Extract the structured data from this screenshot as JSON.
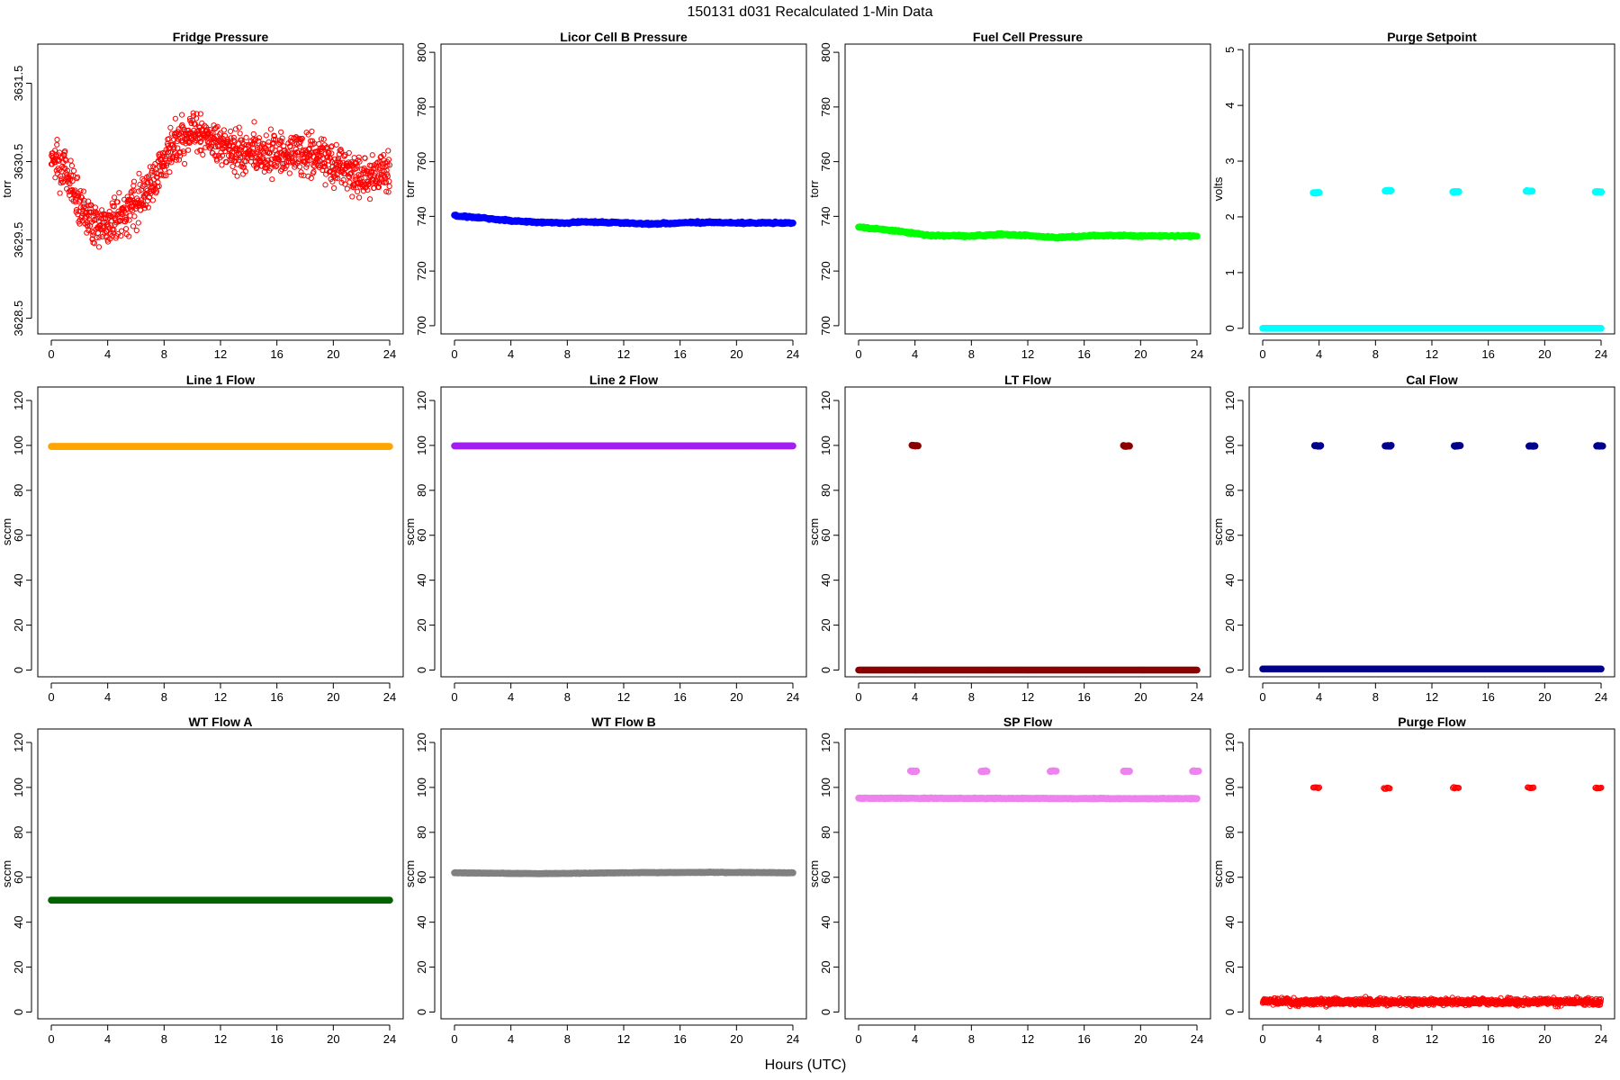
{
  "figure": {
    "title": "150131   d031   Recalculated 1-Min Data",
    "xlabel": "Hours (UTC)"
  },
  "chart_data": [
    {
      "type": "scatter",
      "title": "Fridge Pressure",
      "ylabel": "torr",
      "color": "#ff0000",
      "style": "open",
      "xlim": [
        0,
        24
      ],
      "ylim": [
        3628.3,
        3632.0
      ],
      "xticks": [
        0,
        4,
        8,
        12,
        16,
        20,
        24
      ],
      "yticks": [
        "3628.5",
        "3629.5",
        "3630.5",
        "3631.5"
      ],
      "ytick_vals": [
        3628.5,
        3629.5,
        3630.5,
        3631.5
      ],
      "trend": [
        [
          0,
          3630.6
        ],
        [
          1,
          3630.4
        ],
        [
          2,
          3630.0
        ],
        [
          3,
          3629.7
        ],
        [
          4,
          3629.7
        ],
        [
          5,
          3629.8
        ],
        [
          6,
          3630.0
        ],
        [
          7,
          3630.2
        ],
        [
          8,
          3630.5
        ],
        [
          9,
          3630.8
        ],
        [
          10,
          3630.9
        ],
        [
          11,
          3630.8
        ],
        [
          12,
          3630.7
        ],
        [
          14,
          3630.6
        ],
        [
          16,
          3630.6
        ],
        [
          18,
          3630.6
        ],
        [
          20,
          3630.5
        ],
        [
          22,
          3630.3
        ],
        [
          24,
          3630.4
        ]
      ],
      "spread": 0.45
    },
    {
      "type": "scatter",
      "title": "Licor Cell B Pressure",
      "ylabel": "torr",
      "color": "#0000ff",
      "style": "solid",
      "xlim": [
        0,
        24
      ],
      "ylim": [
        697,
        803
      ],
      "xticks": [
        0,
        4,
        8,
        12,
        16,
        20,
        24
      ],
      "yticks": [
        "700",
        "720",
        "740",
        "760",
        "780",
        "800"
      ],
      "ytick_vals": [
        700,
        720,
        740,
        760,
        780,
        800
      ],
      "trend": [
        [
          0,
          740.2
        ],
        [
          2,
          739.4
        ],
        [
          4,
          738.4
        ],
        [
          6,
          737.8
        ],
        [
          8,
          737.6
        ],
        [
          9,
          738.0
        ],
        [
          12,
          737.6
        ],
        [
          14,
          737.2
        ],
        [
          16,
          737.6
        ],
        [
          18,
          737.8
        ],
        [
          20,
          737.6
        ],
        [
          24,
          737.6
        ]
      ],
      "spread": 0.5
    },
    {
      "type": "scatter",
      "title": "Fuel Cell Pressure",
      "ylabel": "torr",
      "color": "#00ff00",
      "style": "solid",
      "xlim": [
        0,
        24
      ],
      "ylim": [
        697,
        803
      ],
      "xticks": [
        0,
        4,
        8,
        12,
        16,
        20,
        24
      ],
      "yticks": [
        "700",
        "720",
        "740",
        "760",
        "780",
        "800"
      ],
      "ytick_vals": [
        700,
        720,
        740,
        760,
        780,
        800
      ],
      "trend": [
        [
          0,
          736.0
        ],
        [
          2,
          735.0
        ],
        [
          4,
          733.8
        ],
        [
          5,
          733.0
        ],
        [
          8,
          732.8
        ],
        [
          10,
          733.4
        ],
        [
          12,
          733.0
        ],
        [
          14,
          732.2
        ],
        [
          16,
          732.8
        ],
        [
          18,
          733.0
        ],
        [
          20,
          732.8
        ],
        [
          24,
          732.8
        ]
      ],
      "spread": 0.5
    },
    {
      "type": "scatter",
      "title": "Purge Setpoint",
      "ylabel": "volts",
      "color": "#00ffff",
      "style": "solid",
      "xlim": [
        0,
        24
      ],
      "ylim": [
        -0.1,
        5.1
      ],
      "xticks": [
        0,
        4,
        8,
        12,
        16,
        20,
        24
      ],
      "yticks": [
        "0",
        "1",
        "2",
        "3",
        "4",
        "5"
      ],
      "ytick_vals": [
        0,
        1,
        2,
        3,
        4,
        5
      ],
      "trend": [
        [
          0,
          0
        ],
        [
          24,
          0
        ]
      ],
      "spread": 0,
      "clusters": [
        [
          3.8,
          2.43
        ],
        [
          8.9,
          2.47
        ],
        [
          13.7,
          2.45
        ],
        [
          18.9,
          2.46
        ],
        [
          23.8,
          2.45
        ]
      ]
    },
    {
      "type": "scatter",
      "title": "Line 1 Flow",
      "ylabel": "sccm",
      "color": "#ffa500",
      "style": "solid",
      "xlim": [
        0,
        24
      ],
      "ylim": [
        -3,
        126
      ],
      "xticks": [
        0,
        4,
        8,
        12,
        16,
        20,
        24
      ],
      "yticks": [
        "0",
        "20",
        "40",
        "60",
        "80",
        "100",
        "120"
      ],
      "ytick_vals": [
        0,
        20,
        40,
        60,
        80,
        100,
        120
      ],
      "trend": [
        [
          0,
          99.5
        ],
        [
          24,
          99.5
        ]
      ],
      "spread": 0
    },
    {
      "type": "scatter",
      "title": "Line 2 Flow",
      "ylabel": "sccm",
      "color": "#a020f0",
      "style": "solid",
      "xlim": [
        0,
        24
      ],
      "ylim": [
        -3,
        126
      ],
      "xticks": [
        0,
        4,
        8,
        12,
        16,
        20,
        24
      ],
      "yticks": [
        "0",
        "20",
        "40",
        "60",
        "80",
        "100",
        "120"
      ],
      "ytick_vals": [
        0,
        20,
        40,
        60,
        80,
        100,
        120
      ],
      "trend": [
        [
          0,
          99.8
        ],
        [
          24,
          99.8
        ]
      ],
      "spread": 0
    },
    {
      "type": "scatter",
      "title": "LT Flow",
      "ylabel": "sccm",
      "color": "#8b0000",
      "style": "solid",
      "xlim": [
        0,
        24
      ],
      "ylim": [
        -3,
        126
      ],
      "xticks": [
        0,
        4,
        8,
        12,
        16,
        20,
        24
      ],
      "yticks": [
        "0",
        "20",
        "40",
        "60",
        "80",
        "100",
        "120"
      ],
      "ytick_vals": [
        0,
        20,
        40,
        60,
        80,
        100,
        120
      ],
      "trend": [
        [
          0,
          0
        ],
        [
          24,
          0
        ]
      ],
      "spread": 0,
      "clusters": [
        [
          4.0,
          99.8
        ],
        [
          19.0,
          99.8
        ]
      ]
    },
    {
      "type": "scatter",
      "title": "Cal Flow",
      "ylabel": "sccm",
      "color": "#00008b",
      "style": "solid",
      "xlim": [
        0,
        24
      ],
      "ylim": [
        -3,
        126
      ],
      "xticks": [
        0,
        4,
        8,
        12,
        16,
        20,
        24
      ],
      "yticks": [
        "0",
        "20",
        "40",
        "60",
        "80",
        "100",
        "120"
      ],
      "ytick_vals": [
        0,
        20,
        40,
        60,
        80,
        100,
        120
      ],
      "trend": [
        [
          0,
          0.5
        ],
        [
          24,
          0.5
        ]
      ],
      "spread": 0,
      "clusters": [
        [
          3.9,
          99.8
        ],
        [
          8.9,
          99.8
        ],
        [
          13.8,
          99.8
        ],
        [
          19.1,
          99.8
        ],
        [
          23.9,
          99.8
        ]
      ]
    },
    {
      "type": "scatter",
      "title": "WT Flow A",
      "ylabel": "sccm",
      "color": "#006400",
      "style": "solid",
      "xlim": [
        0,
        24
      ],
      "ylim": [
        -3,
        126
      ],
      "xticks": [
        0,
        4,
        8,
        12,
        16,
        20,
        24
      ],
      "yticks": [
        "0",
        "20",
        "40",
        "60",
        "80",
        "100",
        "120"
      ],
      "ytick_vals": [
        0,
        20,
        40,
        60,
        80,
        100,
        120
      ],
      "trend": [
        [
          0,
          49.8
        ],
        [
          24,
          49.8
        ]
      ],
      "spread": 0
    },
    {
      "type": "scatter",
      "title": "WT Flow B",
      "ylabel": "sccm",
      "color": "#808080",
      "style": "solid",
      "xlim": [
        0,
        24
      ],
      "ylim": [
        -3,
        126
      ],
      "xticks": [
        0,
        4,
        8,
        12,
        16,
        20,
        24
      ],
      "yticks": [
        "0",
        "20",
        "40",
        "60",
        "80",
        "100",
        "120"
      ],
      "ytick_vals": [
        0,
        20,
        40,
        60,
        80,
        100,
        120
      ],
      "trend": [
        [
          0,
          62.0
        ],
        [
          6,
          61.6
        ],
        [
          12,
          62.0
        ],
        [
          18,
          62.2
        ],
        [
          24,
          62.0
        ]
      ],
      "spread": 0.2
    },
    {
      "type": "scatter",
      "title": "SP Flow",
      "ylabel": "sccm",
      "color": "#ee82ee",
      "style": "solid",
      "xlim": [
        0,
        24
      ],
      "ylim": [
        -3,
        126
      ],
      "xticks": [
        0,
        4,
        8,
        12,
        16,
        20,
        24
      ],
      "yticks": [
        "0",
        "20",
        "40",
        "60",
        "80",
        "100",
        "120"
      ],
      "ytick_vals": [
        0,
        20,
        40,
        60,
        80,
        100,
        120
      ],
      "trend": [
        [
          0,
          95.2
        ],
        [
          24,
          95.0
        ]
      ],
      "spread": 0.3,
      "clusters": [
        [
          3.9,
          107.2
        ],
        [
          8.9,
          107.2
        ],
        [
          13.8,
          107.2
        ],
        [
          19.0,
          107.2
        ],
        [
          23.9,
          107.2
        ]
      ]
    },
    {
      "type": "scatter",
      "title": "Purge Flow",
      "ylabel": "sccm",
      "color": "#ff0000",
      "style": "open",
      "xlim": [
        0,
        24
      ],
      "ylim": [
        -3,
        126
      ],
      "xticks": [
        0,
        4,
        8,
        12,
        16,
        20,
        24
      ],
      "yticks": [
        "0",
        "20",
        "40",
        "60",
        "80",
        "100",
        "120"
      ],
      "ytick_vals": [
        0,
        20,
        40,
        60,
        80,
        100,
        120
      ],
      "trend": [
        [
          0,
          4.5
        ],
        [
          24,
          4.5
        ]
      ],
      "spread": 2.5,
      "clusters": [
        [
          3.8,
          99.8
        ],
        [
          8.8,
          99.6
        ],
        [
          13.7,
          99.8
        ],
        [
          19.0,
          99.8
        ],
        [
          23.8,
          99.8
        ]
      ]
    }
  ]
}
